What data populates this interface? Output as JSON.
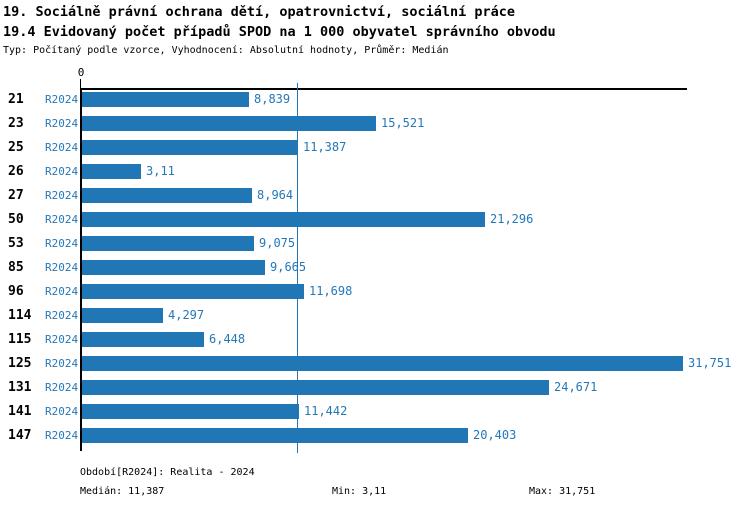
{
  "header": {
    "title1": "19. Sociálně právní ochrana dětí, opatrovnictví, sociální práce",
    "title2": "19.4 Evidovaný počet případů SPOD na 1 000 obyvatel správního obvodu",
    "subtitle": "Typ: Počítaný podle vzorce, Vyhodnocení: Absolutní hodnoty, Průměr: Medián"
  },
  "chart_data": {
    "type": "bar",
    "orientation": "horizontal",
    "series_label": "R2024",
    "categories": [
      "21",
      "23",
      "25",
      "26",
      "27",
      "50",
      "53",
      "85",
      "96",
      "114",
      "115",
      "125",
      "131",
      "141",
      "147"
    ],
    "values": [
      8.839,
      15.521,
      11.387,
      3.11,
      8.964,
      21.296,
      9.075,
      9.665,
      11.698,
      4.297,
      6.448,
      31.751,
      24.671,
      11.442,
      20.403
    ],
    "value_labels": [
      "8,839",
      "15,521",
      "11,387",
      "3,11",
      "8,964",
      "21,296",
      "9,075",
      "9,665",
      "11,698",
      "4,297",
      "6,448",
      "31,751",
      "24,671",
      "11,442",
      "20,403"
    ],
    "axis_origin_label": "0",
    "xlim": [
      0,
      32
    ],
    "median_value": 11.387,
    "grid": false,
    "legend_position": "none",
    "colors": {
      "bar": "#2176b5",
      "accent_text": "#2478b8",
      "axis": "#000000"
    }
  },
  "footer": {
    "period": "Období[R2024]: Realita - 2024",
    "median": "Medián: 11,387",
    "min": "Min: 3,11",
    "max": "Max: 31,751"
  }
}
